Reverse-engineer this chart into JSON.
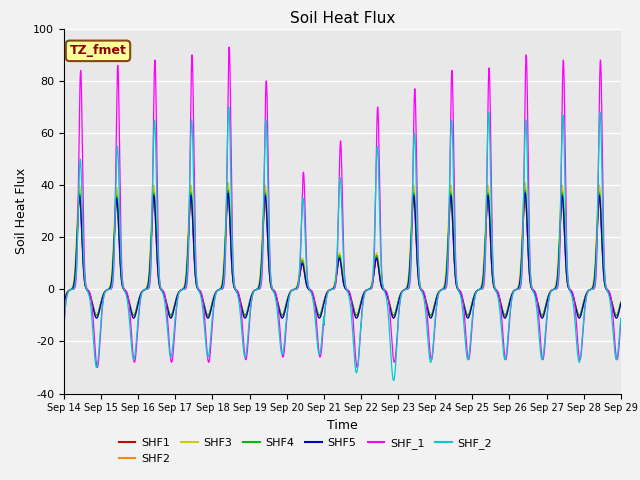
{
  "title": "Soil Heat Flux",
  "xlabel": "Time",
  "ylabel": "Soil Heat Flux",
  "ylim": [
    -40,
    100
  ],
  "x_tick_labels": [
    "Sep 14",
    "Sep 15",
    "Sep 16",
    "Sep 17",
    "Sep 18",
    "Sep 19",
    "Sep 20",
    "Sep 21",
    "Sep 22",
    "Sep 23",
    "Sep 24",
    "Sep 25",
    "Sep 26",
    "Sep 27",
    "Sep 28",
    "Sep 29"
  ],
  "annotation_text": "TZ_fmet",
  "series_colors": {
    "SHF1": "#CC0000",
    "SHF2": "#FF8800",
    "SHF3": "#CCCC00",
    "SHF4": "#00BB00",
    "SHF5": "#0000CC",
    "SHF_1": "#FF00FF",
    "SHF_2": "#00CCCC"
  },
  "background_color": "#E8E8E8",
  "grid_color": "#FFFFFF",
  "num_days": 15,
  "points_per_day": 288,
  "day_peak_amplitudes_shf1": [
    35,
    34,
    35,
    35,
    36,
    35,
    10,
    12,
    12,
    35,
    35,
    35,
    36,
    35,
    35
  ],
  "day_peak_amplitudes_shf2": [
    38,
    37,
    38,
    38,
    39,
    38,
    11,
    13,
    13,
    38,
    38,
    38,
    39,
    38,
    38
  ],
  "day_peak_amplitudes_shf3": [
    40,
    39,
    40,
    40,
    41,
    40,
    12,
    14,
    14,
    40,
    40,
    40,
    41,
    40,
    40
  ],
  "day_peak_amplitudes_shf4": [
    37,
    36,
    37,
    37,
    38,
    37,
    11,
    13,
    13,
    37,
    37,
    37,
    38,
    37,
    37
  ],
  "day_peak_amplitudes_shf5": [
    36,
    35,
    36,
    36,
    37,
    36,
    10,
    12,
    12,
    36,
    36,
    36,
    37,
    36,
    36
  ],
  "day_peak_amplitudes_shf_1": [
    84,
    86,
    88,
    90,
    93,
    80,
    45,
    57,
    70,
    77,
    84,
    85,
    90,
    88,
    88
  ],
  "day_peak_amplitudes_shf_2": [
    50,
    55,
    65,
    65,
    70,
    65,
    35,
    43,
    55,
    60,
    65,
    68,
    65,
    67,
    68
  ],
  "night_min_shf1": -10,
  "night_min_shf2": -11,
  "night_min_shf3": -10,
  "night_min_shf4": -10,
  "night_min_shf5": -11,
  "night_min_shf_1": [
    -30,
    -28,
    -28,
    -28,
    -27,
    -26,
    -26,
    -30,
    -28,
    -27,
    -27,
    -27,
    -27,
    -27,
    -27
  ],
  "night_min_shf_2": [
    -30,
    -27,
    -26,
    -26,
    -26,
    -25,
    -25,
    -32,
    -35,
    -28,
    -27,
    -27,
    -27,
    -28,
    -27
  ]
}
